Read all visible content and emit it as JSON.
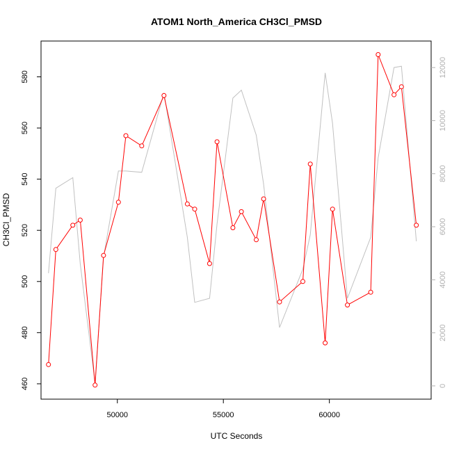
{
  "chart_data": {
    "type": "line",
    "title": "ATOM1 North_America CH3Cl_PMSD",
    "xlabel": "UTC Seconds",
    "ylabel": "CH3Cl_PMSD",
    "xlim": [
      46400,
      64800
    ],
    "ylim": [
      454,
      594
    ],
    "y2lim": [
      -500,
      13000
    ],
    "x_ticks": [
      50000,
      55000,
      60000
    ],
    "y_ticks": [
      460,
      480,
      500,
      520,
      540,
      560,
      580
    ],
    "y2_ticks": [
      0,
      2000,
      4000,
      6000,
      8000,
      10000,
      12000
    ],
    "grid": false,
    "series": [
      {
        "axis": "left",
        "color": "#ff0000",
        "marker": "open-circle",
        "x": [
          46750,
          47100,
          47900,
          48250,
          48950,
          49350,
          50050,
          50400,
          51150,
          52200,
          53300,
          53650,
          54350,
          54700,
          55450,
          55850,
          56550,
          56900,
          57650,
          58750,
          59100,
          59800,
          60150,
          60850,
          61950,
          62300,
          63050,
          63400,
          64100
        ],
        "y": [
          467.5,
          512.5,
          522,
          524,
          459.5,
          510.2,
          531,
          557,
          553,
          572.7,
          530.3,
          528.3,
          507,
          554.6,
          521,
          527.3,
          516.3,
          532.3,
          492,
          500,
          545.9,
          476,
          528.3,
          490.8,
          495.8,
          588.7,
          573,
          576.1,
          522
        ]
      },
      {
        "axis": "right",
        "color": "#c0c0c0",
        "marker": "none",
        "x": [
          46750,
          47100,
          47900,
          48250,
          48950,
          49350,
          50050,
          50400,
          51150,
          52200,
          53300,
          53650,
          54350,
          54700,
          55450,
          55850,
          56550,
          56900,
          57650,
          58750,
          59100,
          59800,
          60150,
          60850,
          61950,
          62300,
          63050,
          63400,
          64100
        ],
        "y": [
          4250,
          7450,
          7850,
          4600,
          100,
          4850,
          8100,
          8100,
          8050,
          11050,
          5600,
          3150,
          3300,
          6100,
          10850,
          11150,
          9450,
          7600,
          2200,
          4400,
          5700,
          11800,
          9900,
          3300,
          5600,
          8600,
          12000,
          12050,
          5450
        ]
      }
    ]
  }
}
